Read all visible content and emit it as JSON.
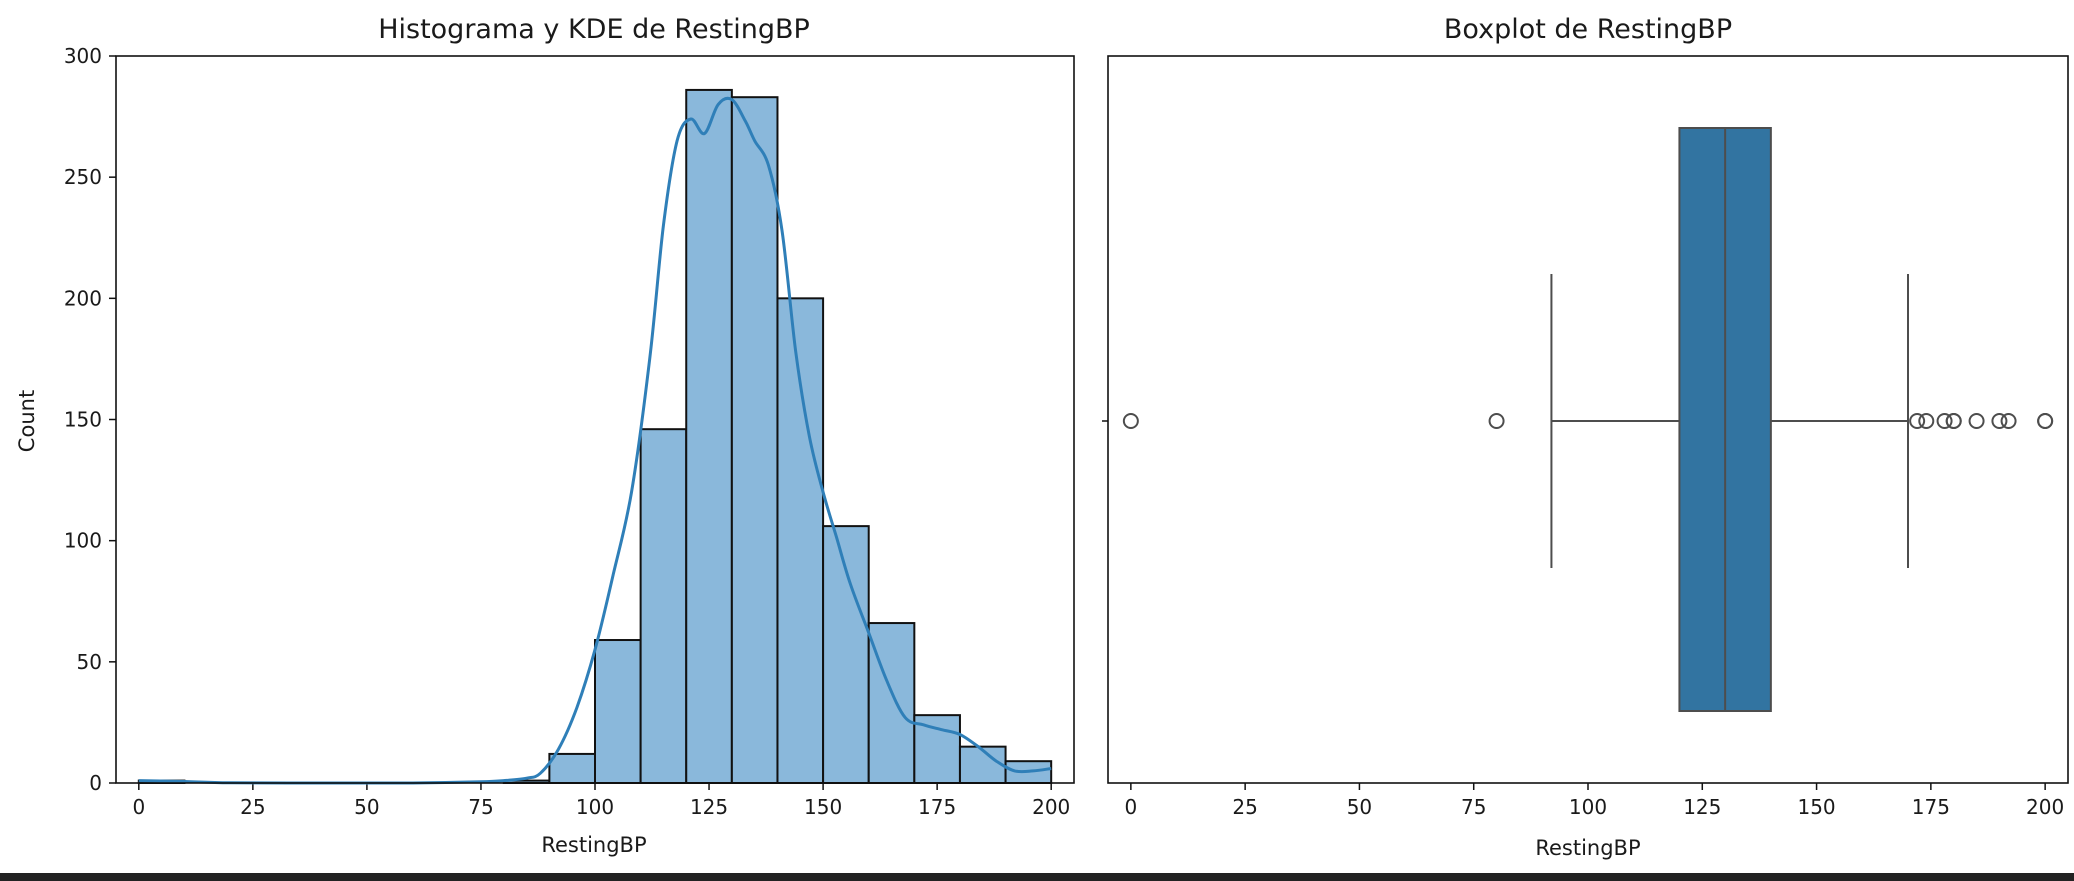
{
  "colors": {
    "hist_fill": "#8ab8db",
    "kde_line": "#2f7fb8",
    "box_fill": "#3274a1",
    "edge": "#111111",
    "whisker": "#4d4d4d"
  },
  "chart_data": [
    {
      "type": "bar",
      "subtype": "histogram-with-kde",
      "title": "Histograma y KDE de RestingBP",
      "xlabel": "RestingBP",
      "ylabel": "Count",
      "xlim": [
        -5,
        205
      ],
      "ylim": [
        0,
        300
      ],
      "xticks": [
        0,
        25,
        50,
        75,
        100,
        125,
        150,
        175,
        200
      ],
      "yticks": [
        0,
        50,
        100,
        150,
        200,
        250,
        300
      ],
      "bins": [
        {
          "start": 0,
          "end": 10,
          "count": 1
        },
        {
          "start": 10,
          "end": 20,
          "count": 0
        },
        {
          "start": 20,
          "end": 30,
          "count": 0
        },
        {
          "start": 30,
          "end": 40,
          "count": 0
        },
        {
          "start": 40,
          "end": 50,
          "count": 0
        },
        {
          "start": 50,
          "end": 60,
          "count": 0
        },
        {
          "start": 60,
          "end": 70,
          "count": 0
        },
        {
          "start": 70,
          "end": 80,
          "count": 0
        },
        {
          "start": 80,
          "end": 90,
          "count": 1
        },
        {
          "start": 90,
          "end": 100,
          "count": 12
        },
        {
          "start": 100,
          "end": 110,
          "count": 59
        },
        {
          "start": 110,
          "end": 120,
          "count": 146
        },
        {
          "start": 120,
          "end": 130,
          "count": 286
        },
        {
          "start": 130,
          "end": 140,
          "count": 283
        },
        {
          "start": 140,
          "end": 150,
          "count": 200
        },
        {
          "start": 150,
          "end": 160,
          "count": 106
        },
        {
          "start": 160,
          "end": 170,
          "count": 66
        },
        {
          "start": 170,
          "end": 180,
          "count": 28
        },
        {
          "start": 180,
          "end": 190,
          "count": 15
        },
        {
          "start": 190,
          "end": 200,
          "count": 9
        }
      ],
      "kde": {
        "x": [
          0,
          10,
          20,
          40,
          60,
          75,
          80,
          85,
          88,
          92,
          96,
          100,
          104,
          108,
          112,
          115,
          118,
          121,
          124,
          127,
          130,
          133,
          135,
          138,
          141,
          144,
          147,
          150,
          153,
          156,
          160,
          164,
          168,
          172,
          176,
          180,
          184,
          188,
          192,
          196,
          200
        ],
        "y": [
          1,
          0.6,
          0.1,
          0,
          0,
          0.5,
          1,
          2,
          4,
          14,
          31,
          55,
          86,
          120,
          175,
          230,
          265,
          274,
          268,
          280,
          282,
          273,
          265,
          255,
          228,
          178,
          143,
          120,
          101,
          82,
          62,
          42,
          27,
          24,
          22,
          20,
          15,
          9,
          5,
          5,
          6
        ]
      }
    },
    {
      "type": "box",
      "title": "Boxplot de RestingBP",
      "xlabel": "RestingBP",
      "xlim": [
        -5,
        205
      ],
      "xticks": [
        0,
        25,
        50,
        75,
        100,
        125,
        150,
        175,
        200
      ],
      "whisker_low": 92,
      "q1": 120,
      "median": 130,
      "q3": 140,
      "whisker_high": 170,
      "outliers": [
        0,
        80,
        172,
        174,
        178,
        180,
        180,
        185,
        190,
        192,
        200,
        200
      ]
    }
  ]
}
